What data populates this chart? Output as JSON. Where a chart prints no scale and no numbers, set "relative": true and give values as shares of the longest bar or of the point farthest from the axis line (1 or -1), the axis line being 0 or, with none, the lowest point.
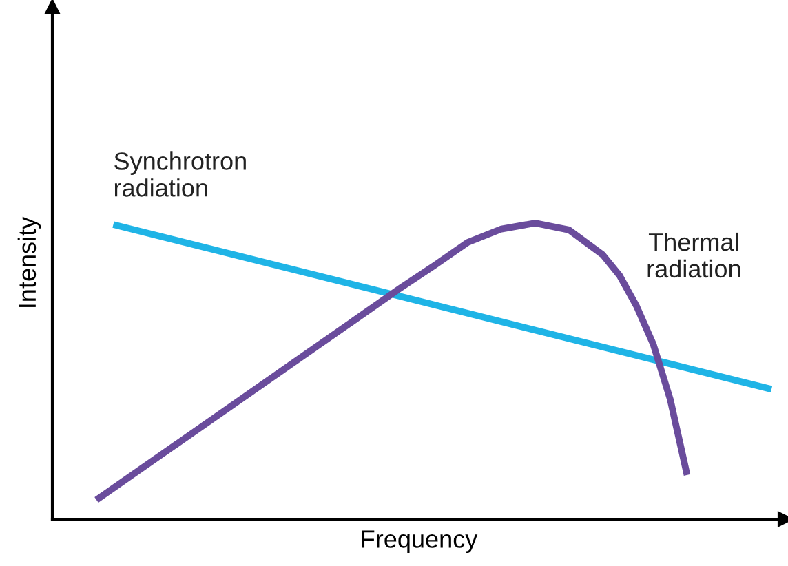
{
  "chart_data": {
    "type": "line",
    "relative": true,
    "xlabel": "Frequency",
    "ylabel": "Intensity",
    "legend": false,
    "grid": false,
    "marker": "none",
    "line_style": "solid",
    "categories": [
      null,
      null,
      null,
      null,
      null,
      null,
      null,
      null,
      null,
      null,
      null,
      null,
      null,
      null,
      null,
      null,
      null,
      null,
      null,
      null,
      null,
      null,
      null,
      null,
      null,
      null,
      null,
      null,
      null,
      null,
      null,
      null,
      null,
      null,
      null,
      null,
      null,
      null,
      null,
      null,
      null
    ],
    "series": [
      {
        "name": "Synchrotron\nradiation",
        "color": "#1fb4e6",
        "values": [
          null,
          0.995,
          null,
          null,
          null,
          null,
          null,
          null,
          null,
          null,
          null,
          null,
          null,
          null,
          null,
          null,
          null,
          null,
          null,
          null,
          null,
          null,
          null,
          null,
          null,
          null,
          null,
          null,
          null,
          null,
          null,
          null,
          null,
          null,
          null,
          null,
          null,
          null,
          null,
          null,
          0.439
        ]
      },
      {
        "name": "Thermal\nradiation",
        "color": "#6a4c9c",
        "values": [
          0.065,
          null,
          null,
          null,
          null,
          null,
          null,
          null,
          null,
          null,
          null,
          null,
          null,
          null,
          null,
          null,
          null,
          null,
          0.78,
          null,
          0.856,
          null,
          0.935,
          null,
          0.98,
          null,
          1.0,
          null,
          0.977,
          null,
          0.893,
          0.823,
          0.72,
          0.59,
          0.405,
          0.149,
          null,
          null,
          null,
          null,
          null
        ]
      }
    ]
  }
}
